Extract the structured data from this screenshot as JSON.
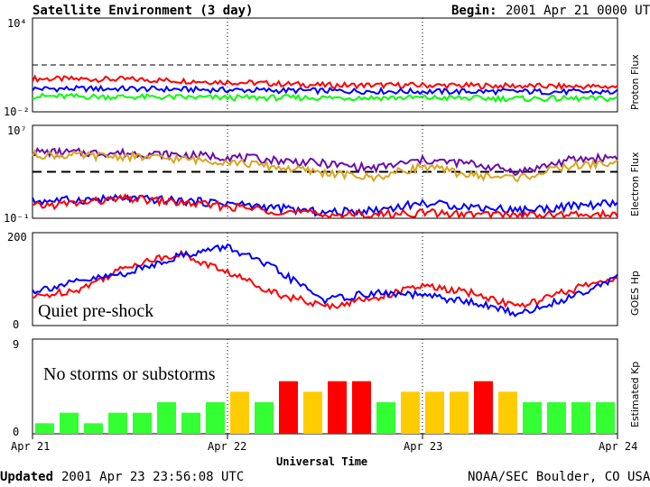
{
  "header": {
    "title": "Satellite Environment (3 day)",
    "begin_label": "Begin:",
    "begin_value": "2001 Apr 21 0000 UTC"
  },
  "footer": {
    "updated_label": "Updated",
    "updated_value": "2001 Apr 23 23:56:08 UTC",
    "credit": "NOAA/SEC Boulder, CO USA",
    "xlabel": "Universal Time"
  },
  "colors": {
    "red": "#ff0000",
    "blue": "#0000ff",
    "green": "#00ff00",
    "gold": "#daa520",
    "purple": "#6a0dad",
    "kp_green": "#33ff33",
    "kp_yellow": "#ffcc00",
    "kp_red": "#ff0000"
  },
  "chart_data": [
    {
      "type": "line",
      "ylabel": "Proton Flux",
      "yscale": "log",
      "ylim": [
        0.01,
        10000
      ],
      "yticks": [
        "10⁴",
        "10⁻²"
      ],
      "xlim": [
        "2001-04-21",
        "2001-04-24"
      ],
      "xticks": [
        "Apr 21",
        "Apr 22",
        "Apr 23",
        "Apr 24"
      ],
      "reference_lines": [
        10
      ],
      "series": [
        {
          "color": "red",
          "x": [
            "2001-04-21 00:00",
            "2001-04-21 12:00",
            "2001-04-22 00:00",
            "2001-04-22 12:00",
            "2001-04-23 00:00",
            "2001-04-23 12:00",
            "2001-04-24 00:00"
          ],
          "values": [
            1.3,
            1.2,
            0.8,
            0.5,
            0.5,
            0.45,
            0.4
          ]
        },
        {
          "color": "blue",
          "x": [
            "2001-04-21 00:00",
            "2001-04-21 12:00",
            "2001-04-22 00:00",
            "2001-04-22 12:00",
            "2001-04-23 00:00",
            "2001-04-23 12:00",
            "2001-04-24 00:00"
          ],
          "values": [
            0.3,
            0.3,
            0.25,
            0.22,
            0.2,
            0.2,
            0.18
          ]
        },
        {
          "color": "green",
          "x": [
            "2001-04-21 00:00",
            "2001-04-21 12:00",
            "2001-04-22 00:00",
            "2001-04-22 12:00",
            "2001-04-23 00:00",
            "2001-04-23 12:00",
            "2001-04-24 00:00"
          ],
          "values": [
            0.1,
            0.09,
            0.08,
            0.08,
            0.08,
            0.07,
            0.07
          ]
        }
      ]
    },
    {
      "type": "line",
      "ylabel": "Electron Flux",
      "yscale": "log",
      "ylim": [
        0.1,
        10000000
      ],
      "yticks": [
        "10⁷",
        "10⁻¹"
      ],
      "xlim": [
        "2001-04-21",
        "2001-04-24"
      ],
      "xticks": [
        "Apr 21",
        "Apr 22",
        "Apr 23",
        "Apr 24"
      ],
      "reference_lines": [
        1000
      ],
      "series": [
        {
          "color": "purple",
          "x": [
            "2001-04-21 00:00",
            "2001-04-21 12:00",
            "2001-04-22 00:00",
            "2001-04-22 12:00",
            "2001-04-22 18:00",
            "2001-04-23 00:00",
            "2001-04-23 06:00",
            "2001-04-23 12:00",
            "2001-04-23 18:00",
            "2001-04-24 00:00"
          ],
          "values": [
            50000,
            40000,
            20000,
            5000,
            2000,
            10000,
            5000,
            1000,
            10000,
            20000
          ]
        },
        {
          "color": "gold",
          "x": [
            "2001-04-21 00:00",
            "2001-04-21 12:00",
            "2001-04-22 00:00",
            "2001-04-22 12:00",
            "2001-04-22 18:00",
            "2001-04-23 00:00",
            "2001-04-23 06:00",
            "2001-04-23 12:00",
            "2001-04-23 18:00",
            "2001-04-24 00:00"
          ],
          "values": [
            30000,
            20000,
            8000,
            800,
            300,
            3000,
            500,
            300,
            3000,
            6000
          ]
        },
        {
          "color": "blue",
          "x": [
            "2001-04-21 00:00",
            "2001-04-21 12:00",
            "2001-04-22 00:00",
            "2001-04-22 12:00",
            "2001-04-22 18:00",
            "2001-04-23 00:00",
            "2001-04-23 06:00",
            "2001-04-23 12:00",
            "2001-04-23 18:00",
            "2001-04-24 00:00"
          ],
          "values": [
            3,
            5,
            2,
            0.3,
            0.5,
            2,
            1,
            0.5,
            1,
            2
          ]
        },
        {
          "color": "red",
          "x": [
            "2001-04-21 00:00",
            "2001-04-21 12:00",
            "2001-04-22 00:00",
            "2001-04-22 12:00",
            "2001-04-22 18:00",
            "2001-04-23 00:00",
            "2001-04-23 06:00",
            "2001-04-23 12:00",
            "2001-04-23 18:00",
            "2001-04-24 00:00"
          ],
          "values": [
            1,
            5,
            1,
            0.2,
            0.2,
            0.3,
            0.2,
            0.2,
            0.2,
            0.2
          ]
        }
      ]
    },
    {
      "type": "line",
      "ylabel": "GOES Hp",
      "ylim": [
        0,
        200
      ],
      "yticks": [
        "200",
        "0"
      ],
      "xlim": [
        "2001-04-21",
        "2001-04-24"
      ],
      "xticks": [
        "Apr 21",
        "Apr 22",
        "Apr 23",
        "Apr 24"
      ],
      "annotation": "Quiet pre-shock",
      "series": [
        {
          "color": "red",
          "x": [
            "2001-04-21 00:00",
            "2001-04-21 06:00",
            "2001-04-21 12:00",
            "2001-04-21 18:00",
            "2001-04-22 00:00",
            "2001-04-22 06:00",
            "2001-04-22 12:00",
            "2001-04-22 18:00",
            "2001-04-23 00:00",
            "2001-04-23 06:00",
            "2001-04-23 12:00",
            "2001-04-23 18:00",
            "2001-04-24 00:00"
          ],
          "values": [
            60,
            80,
            130,
            155,
            115,
            70,
            40,
            60,
            85,
            70,
            40,
            75,
            105
          ]
        },
        {
          "color": "blue",
          "x": [
            "2001-04-21 00:00",
            "2001-04-21 06:00",
            "2001-04-21 12:00",
            "2001-04-21 18:00",
            "2001-04-22 00:00",
            "2001-04-22 06:00",
            "2001-04-22 12:00",
            "2001-04-22 18:00",
            "2001-04-23 00:00",
            "2001-04-23 06:00",
            "2001-04-23 12:00",
            "2001-04-23 18:00",
            "2001-04-24 00:00"
          ],
          "values": [
            75,
            95,
            115,
            150,
            170,
            120,
            55,
            70,
            65,
            50,
            25,
            60,
            105
          ]
        }
      ]
    },
    {
      "type": "bar",
      "ylabel": "Estimated Kp",
      "ylim": [
        0,
        9
      ],
      "yticks": [
        "9",
        "0"
      ],
      "xticks": [
        "Apr 21",
        "Apr 22",
        "Apr 23",
        "Apr 24"
      ],
      "xlabel": "Universal Time",
      "annotation": "No storms or substorms",
      "categories": [
        "Apr 21 00",
        "Apr 21 03",
        "Apr 21 06",
        "Apr 21 09",
        "Apr 21 12",
        "Apr 21 15",
        "Apr 21 18",
        "Apr 21 21",
        "Apr 22 00",
        "Apr 22 03",
        "Apr 22 06",
        "Apr 22 09",
        "Apr 22 12",
        "Apr 22 15",
        "Apr 22 18",
        "Apr 22 21",
        "Apr 23 00",
        "Apr 23 03",
        "Apr 23 06",
        "Apr 23 09",
        "Apr 23 12",
        "Apr 23 15",
        "Apr 23 18",
        "Apr 23 21"
      ],
      "values": [
        1,
        2,
        1,
        2,
        2,
        3,
        2,
        3,
        4,
        3,
        5,
        4,
        5,
        5,
        3,
        4,
        4,
        4,
        5,
        4,
        3,
        3,
        3,
        3
      ]
    }
  ]
}
